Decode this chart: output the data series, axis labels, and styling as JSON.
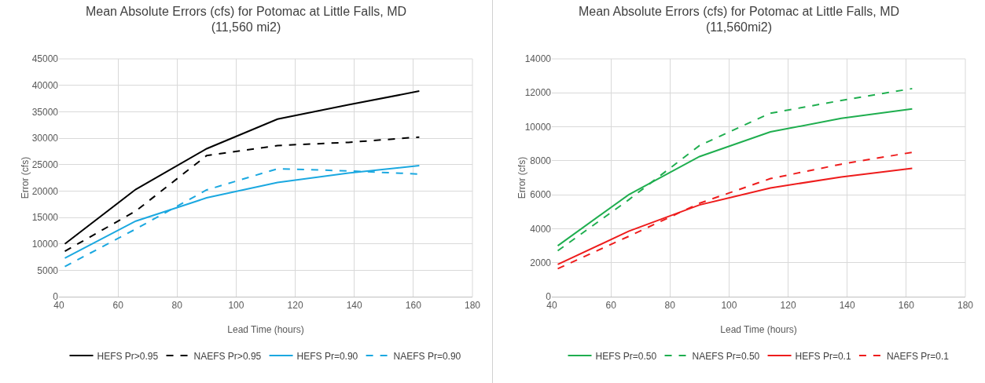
{
  "chart_data": [
    {
      "type": "line",
      "title": "Mean Absolute Errors (cfs) for Potomac at Little Falls, MD\n(11,560 mi2)",
      "xlabel": "Lead Time (hours)",
      "ylabel": "Error (cfs)",
      "x": [
        42,
        66,
        90,
        114,
        138,
        162
      ],
      "xlim": [
        40,
        180
      ],
      "xticks": [
        40,
        60,
        80,
        100,
        120,
        140,
        160,
        180
      ],
      "ylim": [
        0,
        45000
      ],
      "yticks": [
        0,
        5000,
        10000,
        15000,
        20000,
        25000,
        30000,
        35000,
        40000,
        45000
      ],
      "grid": true,
      "legend": "bottom",
      "marker": "none",
      "series": [
        {
          "name": "HEFS Pr>0.95",
          "color": "#000000",
          "line_style": "solid",
          "values": [
            10000,
            20300,
            28000,
            33600,
            36300,
            38900
          ]
        },
        {
          "name": "NAEFS Pr>0.95",
          "color": "#000000",
          "line_style": "dashed",
          "values": [
            8600,
            16200,
            26700,
            28600,
            29200,
            30200
          ]
        },
        {
          "name": "HEFS Pr=0.90",
          "color": "#1ba8e0",
          "line_style": "solid",
          "values": [
            7300,
            14300,
            18700,
            21600,
            23400,
            24800
          ]
        },
        {
          "name": "NAEFS Pr=0.90",
          "color": "#1ba8e0",
          "line_style": "dashed",
          "values": [
            5700,
            12800,
            20200,
            24200,
            23800,
            23200
          ]
        }
      ]
    },
    {
      "type": "line",
      "title": "Mean Absolute Errors (cfs) for Potomac at Little Falls, MD\n(11,560mi2)",
      "xlabel": "Lead Time (hours)",
      "ylabel": "Error (cfs)",
      "x": [
        42,
        66,
        90,
        114,
        138,
        162
      ],
      "xlim": [
        40,
        180
      ],
      "xticks": [
        40,
        60,
        80,
        100,
        120,
        140,
        160,
        180
      ],
      "ylim": [
        0,
        14000
      ],
      "yticks": [
        0,
        2000,
        4000,
        6000,
        8000,
        10000,
        12000,
        14000
      ],
      "grid": true,
      "legend": "bottom",
      "marker": "none",
      "series": [
        {
          "name": "HEFS Pr=0.50",
          "color": "#1fae4f",
          "line_style": "solid",
          "values": [
            3000,
            6000,
            8250,
            9700,
            10500,
            11050
          ]
        },
        {
          "name": "NAEFS Pr=0.50",
          "color": "#1fae4f",
          "line_style": "dashed",
          "values": [
            2700,
            5700,
            8900,
            10800,
            11550,
            12250
          ]
        },
        {
          "name": "HEFS Pr=0.1",
          "color": "#ee1c1c",
          "line_style": "solid",
          "values": [
            1900,
            3850,
            5400,
            6400,
            7050,
            7550
          ]
        },
        {
          "name": "NAEFS Pr=0.1",
          "color": "#ee1c1c",
          "line_style": "dashed",
          "values": [
            1650,
            3550,
            5500,
            6950,
            7800,
            8500
          ]
        }
      ]
    }
  ]
}
